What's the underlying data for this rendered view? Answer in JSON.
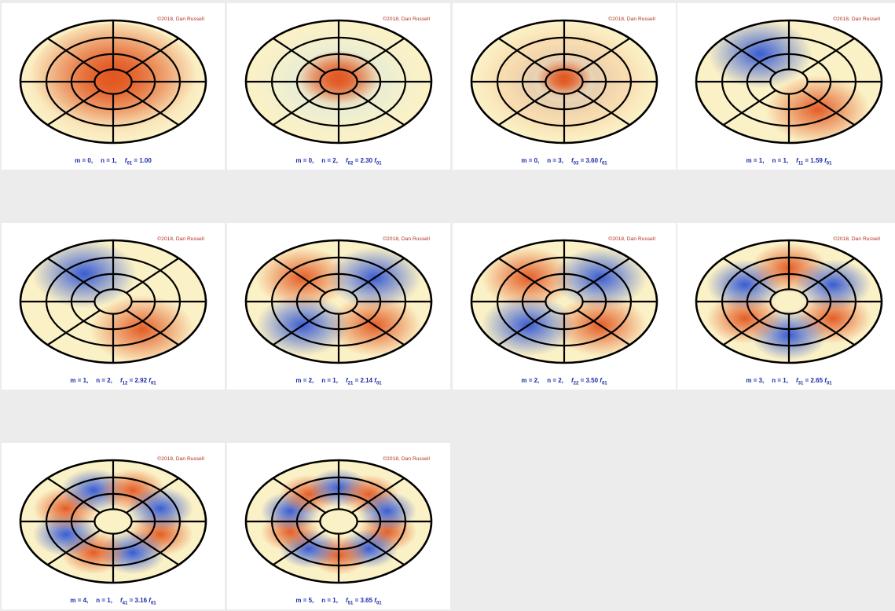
{
  "tiles": [
    {
      "copyright": "©2018, Dan Russell",
      "m_text": "m = 0,",
      "n_text": "n = 1,",
      "f_sub": "01",
      "f_value": "= 1.00",
      "f_ref": "",
      "m": 0,
      "n": 1
    },
    {
      "copyright": "©2018, Dan Russell",
      "m_text": "m = 0,",
      "n_text": "n = 2,",
      "f_sub": "02",
      "f_value": "= 2.30",
      "f_ref": "01",
      "m": 0,
      "n": 2
    },
    {
      "copyright": "©2018, Dan Russell",
      "m_text": "m = 0,",
      "n_text": "n = 3,",
      "f_sub": "03",
      "f_value": "= 3.60",
      "f_ref": "01",
      "m": 0,
      "n": 3
    },
    {
      "copyright": "©2018, Dan Russell",
      "m_text": "m = 1,",
      "n_text": "n = 1,",
      "f_sub": "11",
      "f_value": "= 1.59",
      "f_ref": "01",
      "m": 1,
      "n": 1
    },
    {
      "copyright": "©2018, Dan Russell",
      "m_text": "m = 1,",
      "n_text": "n = 2,",
      "f_sub": "12",
      "f_value": "= 2.92",
      "f_ref": "01",
      "m": 1,
      "n": 2
    },
    {
      "copyright": "©2018, Dan Russell",
      "m_text": "m = 2,",
      "n_text": "n = 1,",
      "f_sub": "21",
      "f_value": "= 2.14",
      "f_ref": "01",
      "m": 2,
      "n": 1
    },
    {
      "copyright": "©2018, Dan Russell",
      "m_text": "m = 2,",
      "n_text": "n = 2,",
      "f_sub": "22",
      "f_value": "= 3.50",
      "f_ref": "01",
      "m": 2,
      "n": 2
    },
    {
      "copyright": "©2018, Dan Russell",
      "m_text": "m = 3,",
      "n_text": "n = 1,",
      "f_sub": "31",
      "f_value": "= 2.65",
      "f_ref": "01",
      "m": 3,
      "n": 1
    },
    {
      "copyright": "©2018, Dan Russell",
      "m_text": "m = 4,",
      "n_text": "n = 1,",
      "f_sub": "41",
      "f_value": "= 3.16",
      "f_ref": "01",
      "m": 4,
      "n": 1
    },
    {
      "copyright": "©2018, Dan Russell",
      "m_text": "m = 5,",
      "n_text": "n = 1,",
      "f_sub": "51",
      "f_value": "= 3.65",
      "f_ref": "01",
      "m": 5,
      "n": 1
    }
  ],
  "f_symbol": "f",
  "colors": {
    "positive": "#e2561f",
    "neutral": "#fbf1c6",
    "negative": "#2f55d4",
    "cool_tint": "#bfe6f5",
    "grid_line": "#000000",
    "caption": "#1a2aa8",
    "copyright": "#b02a1a",
    "background": "#ececec",
    "tile_background": "#ffffff"
  }
}
